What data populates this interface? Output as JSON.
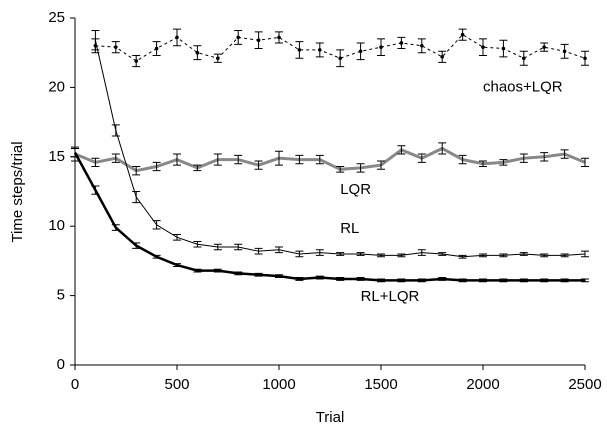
{
  "chart_data": {
    "type": "line",
    "x_label": "Trial",
    "y_label": "Time steps/trial",
    "x": [
      0,
      100,
      200,
      300,
      400,
      500,
      600,
      700,
      800,
      900,
      1000,
      1100,
      1200,
      1300,
      1400,
      1500,
      1600,
      1700,
      1800,
      1900,
      2000,
      2100,
      2200,
      2300,
      2400,
      2500
    ],
    "series": [
      {
        "name": "chaos+LQR",
        "color": "#000000",
        "line_style": "dashed",
        "values": [
          null,
          23.0,
          22.9,
          21.9,
          22.8,
          23.6,
          22.5,
          22.1,
          23.6,
          23.4,
          23.6,
          22.7,
          22.7,
          22.1,
          22.6,
          22.9,
          23.2,
          23.0,
          22.2,
          23.8,
          22.9,
          22.8,
          22.1,
          22.9,
          22.6,
          22.1
        ],
        "errors": [
          null,
          0.5,
          0.4,
          0.4,
          0.5,
          0.6,
          0.5,
          0.3,
          0.5,
          0.6,
          0.4,
          0.6,
          0.5,
          0.6,
          0.6,
          0.6,
          0.4,
          0.5,
          0.4,
          0.4,
          0.6,
          0.6,
          0.5,
          0.3,
          0.5,
          0.5
        ]
      },
      {
        "name": "LQR",
        "color": "#888888",
        "line_style": "solid",
        "values": [
          15.2,
          14.6,
          14.9,
          14.0,
          14.3,
          14.8,
          14.2,
          14.8,
          14.8,
          14.4,
          14.9,
          14.8,
          14.8,
          14.1,
          14.2,
          14.4,
          15.5,
          14.9,
          15.6,
          14.8,
          14.5,
          14.6,
          14.9,
          15.0,
          15.2,
          14.6
        ],
        "errors": [
          0.5,
          0.3,
          0.3,
          0.3,
          0.3,
          0.4,
          0.2,
          0.4,
          0.3,
          0.3,
          0.5,
          0.3,
          0.3,
          0.2,
          0.3,
          0.3,
          0.3,
          0.3,
          0.4,
          0.3,
          0.2,
          0.2,
          0.3,
          0.3,
          0.3,
          0.3
        ]
      },
      {
        "name": "RL",
        "color": "#000000",
        "line_style": "solid",
        "values": [
          null,
          23.4,
          16.9,
          12.1,
          10.1,
          9.2,
          8.7,
          8.5,
          8.5,
          8.2,
          8.3,
          8.0,
          8.1,
          8.0,
          8.0,
          7.9,
          7.9,
          8.1,
          8.0,
          7.8,
          7.9,
          7.9,
          8.0,
          7.9,
          7.9,
          8.0
        ],
        "errors": [
          null,
          0.7,
          0.4,
          0.4,
          0.3,
          0.2,
          0.2,
          0.2,
          0.2,
          0.2,
          0.2,
          0.2,
          0.2,
          0.1,
          0.1,
          0.1,
          0.1,
          0.2,
          0.1,
          0.1,
          0.1,
          0.1,
          0.1,
          0.1,
          0.1,
          0.2
        ]
      },
      {
        "name": "RL+LQR",
        "color": "#000000",
        "line_style": "thick",
        "values": [
          15.3,
          12.6,
          9.9,
          8.6,
          7.8,
          7.2,
          6.8,
          6.8,
          6.6,
          6.5,
          6.4,
          6.2,
          6.3,
          6.2,
          6.2,
          6.1,
          6.1,
          6.1,
          6.2,
          6.1,
          6.1,
          6.1,
          6.1,
          6.1,
          6.1,
          6.1
        ],
        "errors": [
          0.3,
          0.3,
          0.2,
          0.2,
          0.1,
          0.1,
          0.1,
          0.1,
          0.1,
          0.1,
          0.1,
          0.1,
          0.1,
          0.1,
          0.1,
          0.1,
          0.1,
          0.1,
          0.1,
          0.1,
          0.1,
          0.1,
          0.1,
          0.1,
          0.1,
          0.1
        ]
      }
    ],
    "xlim": [
      0,
      2500
    ],
    "xticks": [
      0,
      500,
      1000,
      1500,
      2000,
      2500
    ],
    "ylim": [
      0,
      25
    ],
    "yticks": [
      0,
      5,
      10,
      15,
      20,
      25
    ],
    "grid": false
  }
}
